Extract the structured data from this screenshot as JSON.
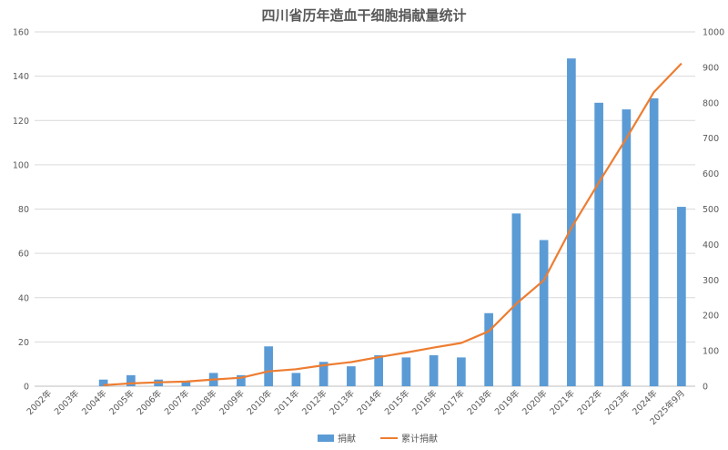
{
  "chart_data": {
    "type": "bar",
    "title": "四川省历年造血干细胞捐献量统计",
    "categories": [
      "2002年",
      "2003年",
      "2004年",
      "2005年",
      "2006年",
      "2007年",
      "2008年",
      "2009年",
      "2010年",
      "2011年",
      "2012年",
      "2013年",
      "2014年",
      "2015年",
      "2016年",
      "2017年",
      "2018年",
      "2019年",
      "2020年",
      "2021年",
      "2022年",
      "2023年",
      "2024年",
      "2025年9月"
    ],
    "series": [
      {
        "name": "捐献",
        "type": "bar",
        "axis": "left",
        "color": "#5B9BD5",
        "values": [
          0,
          0,
          3,
          5,
          3,
          2,
          6,
          5,
          18,
          6,
          11,
          9,
          14,
          13,
          14,
          13,
          33,
          78,
          66,
          148,
          128,
          125,
          130,
          81
        ]
      },
      {
        "name": "累计捐献",
        "type": "line",
        "axis": "right",
        "color": "#ED7D31",
        "values": [
          null,
          null,
          3,
          8,
          11,
          13,
          19,
          24,
          42,
          48,
          59,
          68,
          82,
          95,
          109,
          122,
          155,
          233,
          299,
          447,
          575,
          700,
          830,
          911
        ]
      }
    ],
    "ylim_left": [
      0,
      160
    ],
    "yticks_left": [
      "0",
      "20",
      "40",
      "60",
      "80",
      "100",
      "120",
      "140",
      "160"
    ],
    "ylim_right": [
      0,
      1000
    ],
    "yticks_right": [
      "0",
      "100",
      "200",
      "300",
      "400",
      "500",
      "600",
      "700",
      "800",
      "900",
      "1000"
    ],
    "xlabel": "",
    "ylabel": "",
    "grid": true,
    "legend_position": "bottom"
  }
}
